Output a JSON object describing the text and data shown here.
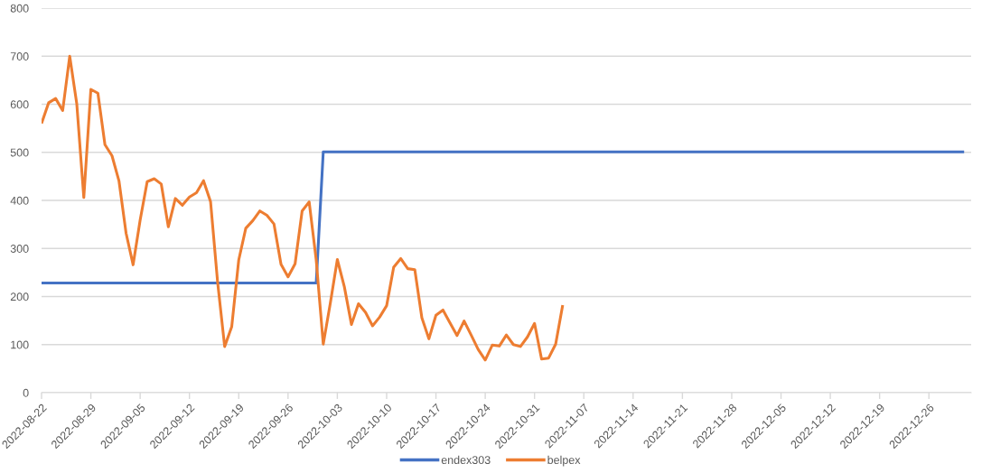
{
  "chart_data": {
    "type": "line",
    "series": [
      {
        "name": "endex303",
        "color": "#4472c4",
        "x": [
          "2022-08-22",
          "2022-09-30",
          "2022-10-01",
          "2022-12-31"
        ],
        "values": [
          228,
          228,
          501,
          501
        ]
      },
      {
        "name": "belpex",
        "color": "#ed7d31",
        "x": [
          "2022-08-22",
          "2022-08-23",
          "2022-08-24",
          "2022-08-25",
          "2022-08-26",
          "2022-08-27",
          "2022-08-28",
          "2022-08-29",
          "2022-08-30",
          "2022-08-31",
          "2022-09-01",
          "2022-09-02",
          "2022-09-03",
          "2022-09-04",
          "2022-09-05",
          "2022-09-06",
          "2022-09-07",
          "2022-09-08",
          "2022-09-09",
          "2022-09-10",
          "2022-09-11",
          "2022-09-12",
          "2022-09-13",
          "2022-09-14",
          "2022-09-15",
          "2022-09-16",
          "2022-09-17",
          "2022-09-18",
          "2022-09-19",
          "2022-09-20",
          "2022-09-21",
          "2022-09-22",
          "2022-09-23",
          "2022-09-24",
          "2022-09-25",
          "2022-09-26",
          "2022-09-27",
          "2022-09-28",
          "2022-09-29",
          "2022-09-30",
          "2022-10-01",
          "2022-10-02",
          "2022-10-03",
          "2022-10-04",
          "2022-10-05",
          "2022-10-06",
          "2022-10-07",
          "2022-10-08",
          "2022-10-09",
          "2022-10-10",
          "2022-10-11",
          "2022-10-12",
          "2022-10-13",
          "2022-10-14",
          "2022-10-15",
          "2022-10-16",
          "2022-10-17",
          "2022-10-18",
          "2022-10-19",
          "2022-10-20",
          "2022-10-21",
          "2022-10-22",
          "2022-10-23",
          "2022-10-24",
          "2022-10-25",
          "2022-10-26",
          "2022-10-27",
          "2022-10-28",
          "2022-10-29",
          "2022-10-30",
          "2022-10-31",
          "2022-11-01",
          "2022-11-02",
          "2022-11-03",
          "2022-11-04"
        ],
        "values": [
          560,
          603,
          612,
          587,
          700,
          601,
          406,
          631,
          623,
          516,
          493,
          440,
          332,
          266,
          359,
          439,
          445,
          434,
          345,
          404,
          390,
          407,
          416,
          441,
          397,
          230,
          96,
          137,
          276,
          342,
          358,
          378,
          369,
          351,
          267,
          241,
          268,
          378,
          397,
          276,
          101,
          186,
          277,
          220,
          142,
          185,
          167,
          139,
          157,
          181,
          261,
          279,
          258,
          256,
          156,
          112,
          161,
          172,
          145,
          119,
          149,
          120,
          90,
          68,
          99,
          97,
          120,
          100,
          96,
          116,
          144,
          70,
          72,
          101,
          182
        ]
      }
    ],
    "xlim": [
      "2022-08-22",
      "2023-01-01"
    ],
    "xticks": [
      "2022-08-22",
      "2022-08-29",
      "2022-09-05",
      "2022-09-12",
      "2022-09-19",
      "2022-09-26",
      "2022-10-03",
      "2022-10-10",
      "2022-10-17",
      "2022-10-24",
      "2022-10-31",
      "2022-11-07",
      "2022-11-14",
      "2022-11-21",
      "2022-11-28",
      "2022-12-05",
      "2022-12-12",
      "2022-12-19",
      "2022-12-26"
    ],
    "ylim": [
      0,
      800
    ],
    "yticks": [
      0,
      100,
      200,
      300,
      400,
      500,
      600,
      700,
      800
    ],
    "grid": "y",
    "legend": "bottom"
  }
}
